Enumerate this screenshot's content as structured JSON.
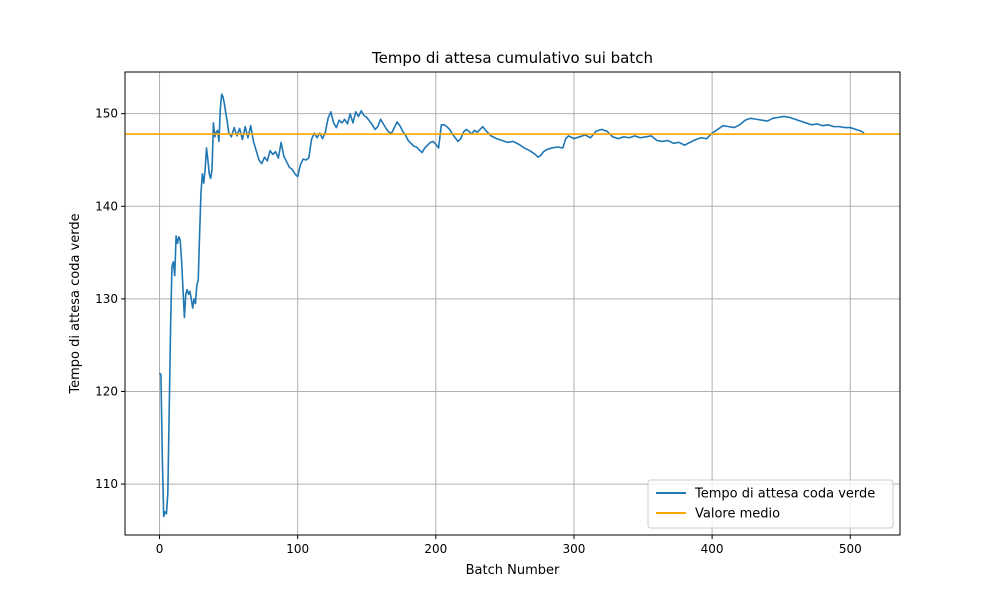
{
  "chart_data": {
    "type": "line",
    "title": "Tempo di attesa cumulativo sui batch",
    "xlabel": "Batch Number",
    "ylabel": "Tempo di attesa coda verde",
    "xlim": [
      -25,
      536
    ],
    "ylim": [
      104.5,
      154.5
    ],
    "xticks": [
      0,
      100,
      200,
      300,
      400,
      500
    ],
    "yticks": [
      110,
      120,
      130,
      140,
      150
    ],
    "grid": true,
    "legend_position": "lower-right",
    "series": [
      {
        "name": "Tempo di attesa coda verde",
        "color": "#1f77b4",
        "points": [
          [
            0,
            122.0
          ],
          [
            1,
            121.8
          ],
          [
            2,
            113.0
          ],
          [
            3,
            106.5
          ],
          [
            4,
            107.0
          ],
          [
            5,
            106.8
          ],
          [
            6,
            109.0
          ],
          [
            7,
            118.0
          ],
          [
            8,
            127.0
          ],
          [
            9,
            133.5
          ],
          [
            10,
            134.0
          ],
          [
            11,
            132.5
          ],
          [
            12,
            136.8
          ],
          [
            13,
            136.0
          ],
          [
            14,
            136.7
          ],
          [
            15,
            136.3
          ],
          [
            16,
            134.0
          ],
          [
            17,
            131.0
          ],
          [
            18,
            128.0
          ],
          [
            19,
            130.5
          ],
          [
            20,
            131.0
          ],
          [
            21,
            130.5
          ],
          [
            22,
            130.8
          ],
          [
            23,
            130.0
          ],
          [
            24,
            129.0
          ],
          [
            25,
            130.0
          ],
          [
            26,
            129.5
          ],
          [
            27,
            131.5
          ],
          [
            28,
            132.0
          ],
          [
            29,
            137.0
          ],
          [
            30,
            141.5
          ],
          [
            31,
            143.5
          ],
          [
            32,
            142.5
          ],
          [
            33,
            144.0
          ],
          [
            34,
            146.3
          ],
          [
            35,
            145.0
          ],
          [
            36,
            143.5
          ],
          [
            37,
            143.0
          ],
          [
            38,
            144.0
          ],
          [
            39,
            149.0
          ],
          [
            40,
            147.5
          ],
          [
            41,
            148.0
          ],
          [
            42,
            148.2
          ],
          [
            43,
            147.0
          ],
          [
            44,
            150.5
          ],
          [
            45,
            152.1
          ],
          [
            46,
            151.8
          ],
          [
            47,
            151.0
          ],
          [
            48,
            150.0
          ],
          [
            49,
            149.2
          ],
          [
            50,
            148.0
          ],
          [
            52,
            147.5
          ],
          [
            54,
            148.5
          ],
          [
            56,
            147.6
          ],
          [
            58,
            148.4
          ],
          [
            60,
            147.2
          ],
          [
            62,
            148.6
          ],
          [
            64,
            147.4
          ],
          [
            66,
            148.7
          ],
          [
            68,
            147.0
          ],
          [
            70,
            146.0
          ],
          [
            72,
            145.0
          ],
          [
            74,
            144.6
          ],
          [
            76,
            145.3
          ],
          [
            78,
            144.9
          ],
          [
            80,
            146.0
          ],
          [
            82,
            145.6
          ],
          [
            84,
            145.9
          ],
          [
            86,
            145.2
          ],
          [
            88,
            146.9
          ],
          [
            90,
            145.4
          ],
          [
            92,
            144.8
          ],
          [
            94,
            144.2
          ],
          [
            96,
            144.0
          ],
          [
            98,
            143.5
          ],
          [
            100,
            143.2
          ],
          [
            102,
            144.5
          ],
          [
            104,
            145.1
          ],
          [
            106,
            145.0
          ],
          [
            108,
            145.2
          ],
          [
            110,
            147.2
          ],
          [
            112,
            147.9
          ],
          [
            114,
            147.4
          ],
          [
            116,
            147.9
          ],
          [
            118,
            147.3
          ],
          [
            120,
            148.0
          ],
          [
            122,
            149.5
          ],
          [
            124,
            150.2
          ],
          [
            126,
            149.0
          ],
          [
            128,
            148.5
          ],
          [
            130,
            149.3
          ],
          [
            132,
            149.0
          ],
          [
            134,
            149.4
          ],
          [
            136,
            148.9
          ],
          [
            138,
            150.0
          ],
          [
            140,
            149.0
          ],
          [
            142,
            150.2
          ],
          [
            144,
            149.7
          ],
          [
            146,
            150.3
          ],
          [
            148,
            149.8
          ],
          [
            150,
            149.6
          ],
          [
            152,
            149.2
          ],
          [
            154,
            148.8
          ],
          [
            156,
            148.3
          ],
          [
            158,
            148.6
          ],
          [
            160,
            149.4
          ],
          [
            162,
            148.9
          ],
          [
            164,
            148.4
          ],
          [
            166,
            148.0
          ],
          [
            168,
            147.9
          ],
          [
            170,
            148.5
          ],
          [
            172,
            149.1
          ],
          [
            174,
            148.7
          ],
          [
            176,
            148.1
          ],
          [
            178,
            147.7
          ],
          [
            180,
            147.1
          ],
          [
            182,
            146.8
          ],
          [
            184,
            146.5
          ],
          [
            186,
            146.4
          ],
          [
            188,
            146.1
          ],
          [
            190,
            145.8
          ],
          [
            192,
            146.3
          ],
          [
            194,
            146.6
          ],
          [
            196,
            146.9
          ],
          [
            198,
            147.0
          ],
          [
            200,
            146.7
          ],
          [
            202,
            146.3
          ],
          [
            204,
            148.8
          ],
          [
            206,
            148.8
          ],
          [
            208,
            148.6
          ],
          [
            210,
            148.3
          ],
          [
            212,
            147.8
          ],
          [
            214,
            147.4
          ],
          [
            216,
            147.0
          ],
          [
            218,
            147.3
          ],
          [
            220,
            148.0
          ],
          [
            222,
            148.3
          ],
          [
            224,
            148.1
          ],
          [
            226,
            147.8
          ],
          [
            228,
            148.2
          ],
          [
            230,
            148.0
          ],
          [
            232,
            148.3
          ],
          [
            234,
            148.6
          ],
          [
            236,
            148.2
          ],
          [
            238,
            147.9
          ],
          [
            240,
            147.6
          ],
          [
            244,
            147.3
          ],
          [
            248,
            147.1
          ],
          [
            252,
            146.9
          ],
          [
            256,
            147.0
          ],
          [
            260,
            146.7
          ],
          [
            264,
            146.3
          ],
          [
            268,
            146.0
          ],
          [
            272,
            145.6
          ],
          [
            274,
            145.3
          ],
          [
            276,
            145.5
          ],
          [
            278,
            145.9
          ],
          [
            280,
            146.1
          ],
          [
            284,
            146.3
          ],
          [
            288,
            146.4
          ],
          [
            292,
            146.3
          ],
          [
            294,
            147.3
          ],
          [
            296,
            147.6
          ],
          [
            300,
            147.3
          ],
          [
            304,
            147.5
          ],
          [
            308,
            147.7
          ],
          [
            312,
            147.4
          ],
          [
            316,
            148.1
          ],
          [
            320,
            148.3
          ],
          [
            324,
            148.1
          ],
          [
            328,
            147.5
          ],
          [
            332,
            147.3
          ],
          [
            336,
            147.5
          ],
          [
            340,
            147.4
          ],
          [
            344,
            147.6
          ],
          [
            348,
            147.4
          ],
          [
            352,
            147.5
          ],
          [
            356,
            147.6
          ],
          [
            360,
            147.1
          ],
          [
            364,
            147.0
          ],
          [
            368,
            147.1
          ],
          [
            372,
            146.8
          ],
          [
            376,
            146.9
          ],
          [
            380,
            146.6
          ],
          [
            384,
            146.9
          ],
          [
            388,
            147.2
          ],
          [
            392,
            147.4
          ],
          [
            396,
            147.3
          ],
          [
            400,
            147.9
          ],
          [
            404,
            148.3
          ],
          [
            408,
            148.7
          ],
          [
            412,
            148.6
          ],
          [
            416,
            148.5
          ],
          [
            420,
            148.8
          ],
          [
            424,
            149.3
          ],
          [
            428,
            149.5
          ],
          [
            432,
            149.4
          ],
          [
            436,
            149.3
          ],
          [
            440,
            149.2
          ],
          [
            444,
            149.5
          ],
          [
            448,
            149.6
          ],
          [
            452,
            149.7
          ],
          [
            456,
            149.6
          ],
          [
            460,
            149.4
          ],
          [
            464,
            149.2
          ],
          [
            468,
            149.0
          ],
          [
            472,
            148.8
          ],
          [
            476,
            148.9
          ],
          [
            480,
            148.7
          ],
          [
            484,
            148.8
          ],
          [
            488,
            148.6
          ],
          [
            492,
            148.6
          ],
          [
            496,
            148.5
          ],
          [
            500,
            148.5
          ],
          [
            504,
            148.3
          ],
          [
            508,
            148.1
          ],
          [
            510,
            147.9
          ]
        ]
      },
      {
        "name": "Valore medio",
        "color": "#ffa500",
        "constant": 147.8
      }
    ]
  }
}
